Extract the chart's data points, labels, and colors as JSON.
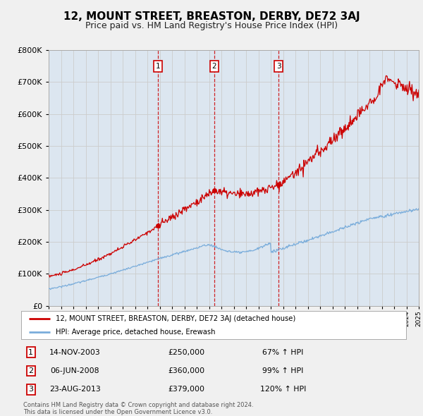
{
  "title": "12, MOUNT STREET, BREASTON, DERBY, DE72 3AJ",
  "subtitle": "Price paid vs. HM Land Registry's House Price Index (HPI)",
  "red_label": "12, MOUNT STREET, BREASTON, DERBY, DE72 3AJ (detached house)",
  "blue_label": "HPI: Average price, detached house, Erewash",
  "footer_line1": "Contains HM Land Registry data © Crown copyright and database right 2024.",
  "footer_line2": "This data is licensed under the Open Government Licence v3.0.",
  "transactions": [
    {
      "num": 1,
      "date": "14-NOV-2003",
      "price": "£250,000",
      "hpi": "67% ↑ HPI",
      "year": 2003.87
    },
    {
      "num": 2,
      "date": "06-JUN-2008",
      "price": "£360,000",
      "hpi": "99% ↑ HPI",
      "year": 2008.43
    },
    {
      "num": 3,
      "date": "23-AUG-2013",
      "price": "£379,000",
      "hpi": "120% ↑ HPI",
      "year": 2013.64
    }
  ],
  "transaction_values": [
    250000,
    360000,
    379000
  ],
  "ylim": [
    0,
    800000
  ],
  "xlim_start": 1995,
  "xlim_end": 2025,
  "grid_color": "#cccccc",
  "red_color": "#cc0000",
  "blue_color": "#7aaddb",
  "fig_bg_color": "#f0f0f0",
  "plot_bg_color": "#dce6f0",
  "title_fontsize": 11,
  "subtitle_fontsize": 9
}
